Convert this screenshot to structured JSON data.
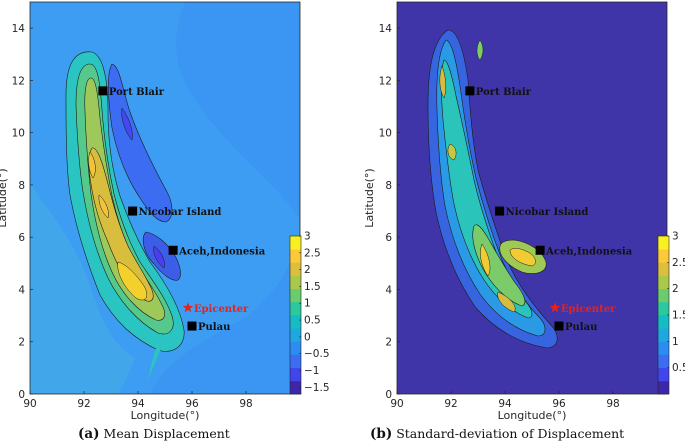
{
  "chart_data": [
    {
      "type": "heatmap",
      "panel_label": "(a)",
      "caption": "Mean Displacement",
      "xlabel": "Longitude(°)",
      "ylabel": "Latitude(°)",
      "xlim": [
        90,
        100
      ],
      "ylim": [
        0,
        15
      ],
      "xticks": [
        "90",
        "92",
        "94",
        "96",
        "98"
      ],
      "yticks": [
        "0",
        "2",
        "4",
        "6",
        "8",
        "10",
        "12",
        "14"
      ],
      "colorbar": {
        "range": [
          -1.7,
          3
        ],
        "ticks": [
          "3",
          "2.5",
          "2",
          "1.5",
          "1",
          "0.5",
          "0",
          "−0.5",
          "−1",
          "−1.5"
        ],
        "tick_values": [
          3,
          2.5,
          2,
          1.5,
          1,
          0.5,
          0,
          -0.5,
          -1,
          -1.5
        ]
      },
      "background_value": 0.05,
      "markers": [
        {
          "name": "Port Blair",
          "lon": 92.7,
          "lat": 11.6,
          "symbol": "square",
          "color": "#000000"
        },
        {
          "name": "Nicobar Island",
          "lon": 93.8,
          "lat": 7.0,
          "symbol": "square",
          "color": "#000000"
        },
        {
          "name": "Aceh,Indonesia",
          "lon": 95.3,
          "lat": 5.5,
          "symbol": "square",
          "color": "#000000"
        },
        {
          "name": "Epicenter",
          "lon": 95.85,
          "lat": 3.3,
          "symbol": "star",
          "color": "#e8221a"
        },
        {
          "name": "Pulau",
          "lon": 96.0,
          "lat": 2.6,
          "symbol": "square",
          "color": "#000000"
        }
      ]
    },
    {
      "type": "heatmap",
      "panel_label": "(b)",
      "caption": "Standard-deviation of Displacement",
      "xlabel": "Longitude(°)",
      "ylabel": "Latitude(°)",
      "xlim": [
        90,
        100
      ],
      "ylim": [
        0,
        15
      ],
      "xticks": [
        "90",
        "92",
        "94",
        "96",
        "98"
      ],
      "yticks": [
        "0",
        "2",
        "4",
        "6",
        "8",
        "10",
        "12",
        "14"
      ],
      "colorbar": {
        "range": [
          0,
          3
        ],
        "ticks": [
          "3",
          "2.5",
          "2",
          "1.5",
          "1",
          "0.5"
        ],
        "tick_values": [
          3,
          2.5,
          2,
          1.5,
          1,
          0.5
        ]
      },
      "background_value": 0.05,
      "markers": [
        {
          "name": "Port Blair",
          "lon": 92.7,
          "lat": 11.6,
          "symbol": "square",
          "color": "#000000"
        },
        {
          "name": "Nicobar Island",
          "lon": 93.8,
          "lat": 7.0,
          "symbol": "square",
          "color": "#000000"
        },
        {
          "name": "Aceh,Indonesia",
          "lon": 95.3,
          "lat": 5.5,
          "symbol": "square",
          "color": "#000000"
        },
        {
          "name": "Epicenter",
          "lon": 95.85,
          "lat": 3.3,
          "symbol": "star",
          "color": "#e8221a"
        },
        {
          "name": "Pulau",
          "lon": 96.0,
          "lat": 2.6,
          "symbol": "square",
          "color": "#000000"
        }
      ]
    }
  ]
}
